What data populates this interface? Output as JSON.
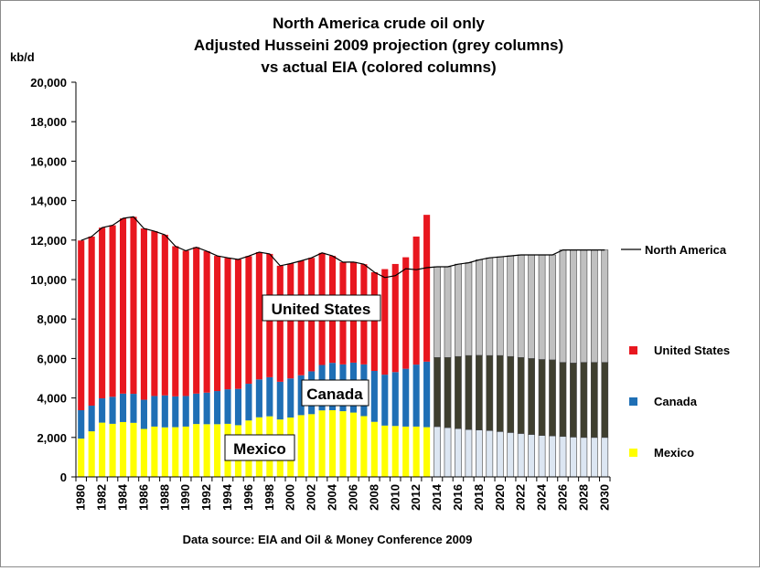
{
  "chart_data": {
    "type": "bar",
    "title": [
      "North America crude oil only",
      "Adjusted  Husseini  2009  projection  (grey columns)",
      "vs actual  EIA (colored columns)"
    ],
    "ylabel": "kb/d",
    "ylim": [
      0,
      20000
    ],
    "ytick_step": 2000,
    "yticks": [
      "0",
      "2,000",
      "4,000",
      "6,000",
      "8,000",
      "10,000",
      "12,000",
      "14,000",
      "16,000",
      "18,000",
      "20,000"
    ],
    "x": [
      1980,
      1981,
      1982,
      1983,
      1984,
      1985,
      1986,
      1987,
      1988,
      1989,
      1990,
      1991,
      1992,
      1993,
      1994,
      1995,
      1996,
      1997,
      1998,
      1999,
      2000,
      2001,
      2002,
      2003,
      2004,
      2005,
      2006,
      2007,
      2008,
      2009,
      2010,
      2011,
      2012,
      2013,
      2014,
      2015,
      2016,
      2017,
      2018,
      2019,
      2020,
      2021,
      2022,
      2023,
      2024,
      2025,
      2026,
      2027,
      2028,
      2029,
      2030
    ],
    "xtick_labels": [
      "1980",
      "1982",
      "1984",
      "1986",
      "1988",
      "1990",
      "1992",
      "1994",
      "1996",
      "1998",
      "2000",
      "2002",
      "2004",
      "2006",
      "2008",
      "2010",
      "2012",
      "2014",
      "2016",
      "2018",
      "2020",
      "2022",
      "2024",
      "2026",
      "2028",
      "2030"
    ],
    "actual": {
      "years": [
        1980,
        1981,
        1982,
        1983,
        1984,
        1985,
        1986,
        1987,
        1988,
        1989,
        1990,
        1991,
        1992,
        1993,
        1994,
        1995,
        1996,
        1997,
        1998,
        1999,
        2000,
        2001,
        2002,
        2003,
        2004,
        2005,
        2006,
        2007,
        2008,
        2009,
        2010,
        2011,
        2012,
        2013
      ],
      "series": [
        {
          "name": "Mexico",
          "color": "#ffff00",
          "values": [
            1940,
            2310,
            2750,
            2690,
            2780,
            2740,
            2430,
            2550,
            2510,
            2520,
            2550,
            2680,
            2670,
            2670,
            2690,
            2620,
            2860,
            3020,
            3070,
            2910,
            3010,
            3130,
            3180,
            3370,
            3380,
            3330,
            3260,
            3080,
            2790,
            2600,
            2580,
            2550,
            2550,
            2520
          ]
        },
        {
          "name": "Canada",
          "color": "#1f6fb5",
          "values": [
            1440,
            1300,
            1230,
            1370,
            1440,
            1470,
            1480,
            1550,
            1620,
            1560,
            1550,
            1540,
            1600,
            1680,
            1750,
            1840,
            1860,
            1920,
            1980,
            1910,
            1980,
            2020,
            2170,
            2300,
            2400,
            2370,
            2530,
            2620,
            2580,
            2580,
            2730,
            2930,
            3140,
            3320
          ]
        },
        {
          "name": "United States",
          "color": "#e8171f",
          "values": [
            8600,
            8570,
            8650,
            8690,
            8880,
            8970,
            8680,
            8350,
            8140,
            7610,
            7360,
            7420,
            7170,
            6850,
            6660,
            6560,
            6470,
            6450,
            6250,
            5880,
            5820,
            5800,
            5750,
            5680,
            5420,
            5180,
            5100,
            5080,
            5000,
            5350,
            5480,
            5650,
            6490,
            7440
          ]
        }
      ]
    },
    "projection": {
      "years": [
        2014,
        2015,
        2016,
        2017,
        2018,
        2019,
        2020,
        2021,
        2022,
        2023,
        2024,
        2025,
        2026,
        2027,
        2028,
        2029,
        2030
      ],
      "colors": {
        "mexico": "#dce6f2",
        "canada": "#3f3f2f",
        "united_states": "#c0c0c0"
      },
      "series": [
        {
          "values": [
            2550,
            2500,
            2450,
            2400,
            2380,
            2350,
            2300,
            2250,
            2200,
            2150,
            2100,
            2080,
            2050,
            2020,
            2000,
            2000,
            2000
          ]
        },
        {
          "values": [
            3500,
            3550,
            3650,
            3750,
            3780,
            3800,
            3850,
            3850,
            3850,
            3850,
            3850,
            3850,
            3750,
            3750,
            3800,
            3800,
            3800
          ]
        },
        {
          "values": [
            4600,
            4600,
            4680,
            4700,
            4840,
            4950,
            5000,
            5100,
            5200,
            5250,
            5300,
            5320,
            5700,
            5730,
            5700,
            5700,
            5700
          ]
        }
      ]
    },
    "line": {
      "name": "North America",
      "color": "#000000",
      "values": [
        11980,
        12180,
        12630,
        12750,
        13100,
        13180,
        12590,
        12450,
        12270,
        11690,
        11460,
        11640,
        11440,
        11200,
        11100,
        11020,
        11190,
        11390,
        11300,
        10700,
        10810,
        10950,
        11100,
        11350,
        11200,
        10880,
        10890,
        10780,
        10370,
        10100,
        10200,
        10550,
        10500,
        10600,
        10650,
        10650,
        10780,
        10850,
        11000,
        11100,
        11150,
        11200,
        11250,
        11250,
        11250,
        11250,
        11500,
        11500,
        11500,
        11500,
        11500
      ]
    },
    "legend": {
      "north_america": "North America",
      "united_states": "United States",
      "canada": "Canada",
      "mexico": "Mexico"
    },
    "annotations": {
      "united_states": "United States",
      "canada": "Canada",
      "mexico": "Mexico"
    },
    "source": "Data source: EIA and Oil & Money Conference 2009"
  }
}
